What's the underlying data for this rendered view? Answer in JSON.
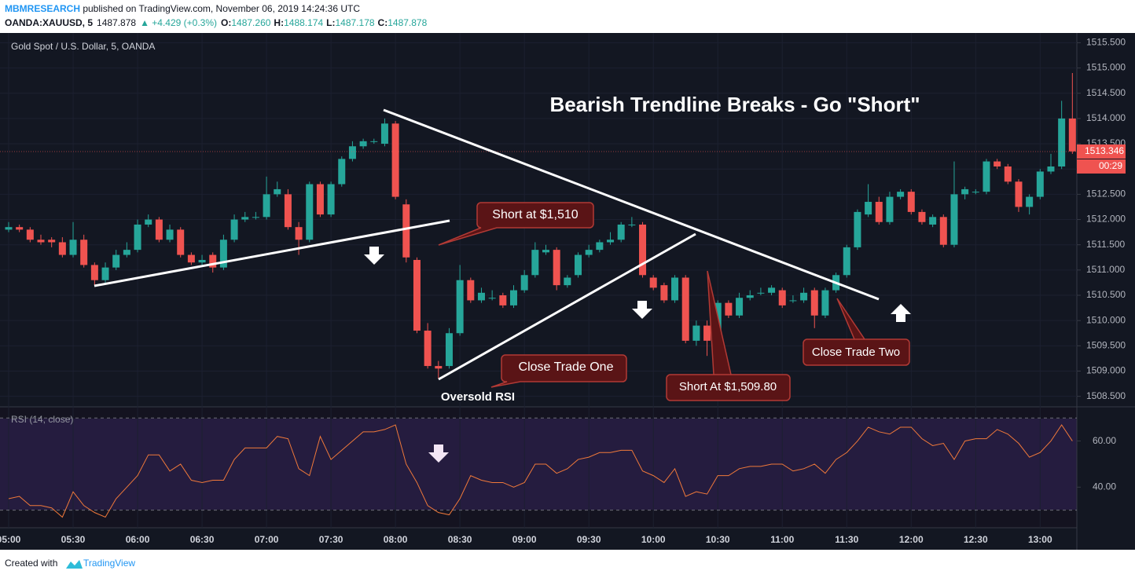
{
  "header": {
    "author": "MBMRESEARCH",
    "published": " published on TradingView.com, November 06, 2019 14:24:36 UTC",
    "symbol": "OANDA:XAUUSD, 5",
    "last": "1487.878",
    "change": "▲ +4.429 (+0.3%)",
    "ohlc": [
      {
        "label": "O:",
        "value": "1487.260"
      },
      {
        "label": "H:",
        "value": "1488.174"
      },
      {
        "label": "L:",
        "value": "1487.178"
      },
      {
        "label": "C:",
        "value": "1487.878"
      }
    ]
  },
  "footer": {
    "prefix": "Created with",
    "brand": "TradingView"
  },
  "chart_data": [
    {
      "type": "candlestick",
      "title": "Gold Spot / U.S. Dollar, 5, OANDA",
      "up_color": "#26a69a",
      "down_color": "#ef5350",
      "categories": [
        "05:00",
        null,
        null,
        null,
        null,
        null,
        "05:30",
        null,
        null,
        null,
        null,
        null,
        "06:00",
        null,
        null,
        null,
        null,
        null,
        "06:30",
        null,
        null,
        null,
        null,
        null,
        "07:00",
        null,
        null,
        null,
        null,
        null,
        "07:30",
        null,
        null,
        null,
        null,
        null,
        "08:00",
        null,
        null,
        null,
        null,
        null,
        "08:30",
        null,
        null,
        null,
        null,
        null,
        "09:00",
        null,
        null,
        null,
        null,
        null,
        "09:30",
        null,
        null,
        null,
        null,
        null,
        "10:00",
        null,
        null,
        null,
        null,
        null,
        "10:30",
        null,
        null,
        null,
        null,
        null,
        "11:00",
        null,
        null,
        null,
        null,
        null,
        "11:30",
        null,
        null,
        null,
        null,
        null,
        "12:00",
        null,
        null,
        null,
        null,
        null,
        "12:30",
        null,
        null,
        null,
        null,
        null,
        "13:00",
        null,
        null,
        null
      ],
      "open": [
        1511.8,
        1511.85,
        1511.8,
        1511.6,
        1511.6,
        1511.55,
        1511.3,
        1511.6,
        1511.1,
        1510.8,
        1511.05,
        1511.3,
        1511.4,
        1511.9,
        1512.0,
        1511.6,
        1511.8,
        1511.3,
        1511.15,
        1511.3,
        1511.05,
        1511.6,
        1512.0,
        1512.05,
        1512.05,
        1512.5,
        1512.5,
        1511.85,
        1511.6,
        1512.7,
        1512.1,
        1512.7,
        1513.2,
        1513.45,
        1513.55,
        1513.5,
        1513.9,
        1512.3,
        1511.2,
        1509.8,
        1509.1,
        1509.1,
        1509.75,
        1510.8,
        1510.4,
        1510.45,
        1510.5,
        1510.3,
        1510.6,
        1510.9,
        1511.35,
        1511.4,
        1510.7,
        1510.9,
        1511.3,
        1511.4,
        1511.55,
        1511.6,
        1511.9,
        1511.9,
        1510.85,
        1510.7,
        1510.4,
        1510.85,
        1509.6,
        1509.9,
        1509.6,
        1510.35,
        1510.1,
        1510.45,
        1510.55,
        1510.55,
        1510.6,
        1510.4,
        1510.4,
        1510.6,
        1510.1,
        1510.6,
        1510.9,
        1511.45,
        1512.1,
        1512.35,
        1511.95,
        1512.45,
        1512.55,
        1512.15,
        1511.9,
        1512.05,
        1511.5,
        1512.5,
        1512.55,
        1512.55,
        1513.15,
        1513.05,
        1512.75,
        1512.25,
        1512.45,
        1512.95,
        1513.05,
        1514.0
      ],
      "high": [
        1511.95,
        1511.9,
        1511.85,
        1511.7,
        1511.65,
        1511.65,
        1511.95,
        1511.7,
        1511.15,
        1511.15,
        1511.4,
        1511.55,
        1512.0,
        1512.1,
        1512.05,
        1511.9,
        1511.85,
        1511.35,
        1511.3,
        1511.35,
        1511.7,
        1512.1,
        1512.15,
        1512.15,
        1512.85,
        1512.75,
        1512.6,
        1511.95,
        1512.75,
        1512.75,
        1512.75,
        1513.25,
        1513.55,
        1513.6,
        1513.6,
        1514.0,
        1513.95,
        1512.4,
        1511.25,
        1509.95,
        1509.2,
        1509.85,
        1511.1,
        1510.85,
        1510.65,
        1510.6,
        1510.55,
        1510.7,
        1511.0,
        1511.55,
        1511.5,
        1511.45,
        1510.9,
        1511.35,
        1511.5,
        1511.6,
        1511.75,
        1511.95,
        1512.05,
        1511.95,
        1510.9,
        1510.75,
        1510.9,
        1510.9,
        1510.0,
        1510.0,
        1510.4,
        1510.4,
        1510.55,
        1510.6,
        1510.65,
        1510.7,
        1510.65,
        1510.5,
        1510.65,
        1510.65,
        1510.65,
        1510.95,
        1511.5,
        1512.2,
        1512.7,
        1512.45,
        1512.55,
        1512.6,
        1512.6,
        1512.2,
        1512.1,
        1512.1,
        1513.15,
        1512.65,
        1512.6,
        1513.2,
        1513.2,
        1513.1,
        1512.8,
        1512.5,
        1513.0,
        1513.3,
        1514.35,
        1514.9
      ],
      "low": [
        1511.75,
        1511.75,
        1511.55,
        1511.5,
        1511.45,
        1511.25,
        1511.25,
        1511.05,
        1510.7,
        1510.75,
        1511.0,
        1511.25,
        1511.35,
        1511.85,
        1511.55,
        1511.55,
        1511.25,
        1511.1,
        1511.1,
        1510.95,
        1511.0,
        1511.55,
        1511.95,
        1512.0,
        1512.0,
        1512.45,
        1511.8,
        1511.3,
        1511.55,
        1512.05,
        1512.05,
        1512.65,
        1513.15,
        1513.4,
        1513.5,
        1513.45,
        1512.4,
        1511.15,
        1509.75,
        1509.05,
        1508.85,
        1509.05,
        1509.7,
        1510.35,
        1510.35,
        1510.4,
        1510.25,
        1510.25,
        1510.55,
        1510.85,
        1511.3,
        1510.6,
        1510.65,
        1510.85,
        1511.25,
        1511.35,
        1511.5,
        1511.55,
        1511.85,
        1510.85,
        1510.6,
        1510.35,
        1510.35,
        1509.55,
        1509.5,
        1509.3,
        1509.55,
        1510.05,
        1510.05,
        1510.4,
        1510.5,
        1510.5,
        1510.25,
        1510.35,
        1510.35,
        1509.85,
        1510.05,
        1510.55,
        1510.85,
        1511.4,
        1512.05,
        1511.9,
        1511.9,
        1512.4,
        1512.1,
        1511.9,
        1511.85,
        1511.45,
        1511.45,
        1512.4,
        1512.5,
        1512.5,
        1513.0,
        1512.7,
        1512.15,
        1512.1,
        1512.4,
        1512.9,
        1513.0,
        1513.3
      ],
      "close": [
        1511.85,
        1511.8,
        1511.6,
        1511.55,
        1511.55,
        1511.3,
        1511.6,
        1511.1,
        1510.8,
        1511.05,
        1511.3,
        1511.4,
        1511.9,
        1512.0,
        1511.6,
        1511.8,
        1511.3,
        1511.15,
        1511.2,
        1511.05,
        1511.6,
        1512.0,
        1512.05,
        1512.05,
        1512.5,
        1512.6,
        1511.85,
        1511.6,
        1512.7,
        1512.1,
        1512.7,
        1513.2,
        1513.45,
        1513.55,
        1513.55,
        1513.9,
        1512.45,
        1511.25,
        1509.8,
        1509.1,
        1509.05,
        1509.75,
        1510.8,
        1510.4,
        1510.55,
        1510.45,
        1510.3,
        1510.6,
        1510.9,
        1511.4,
        1511.4,
        1510.7,
        1510.85,
        1511.3,
        1511.4,
        1511.55,
        1511.6,
        1511.9,
        1511.9,
        1510.9,
        1510.65,
        1510.4,
        1510.85,
        1509.6,
        1509.9,
        1509.6,
        1510.35,
        1510.1,
        1510.45,
        1510.5,
        1510.55,
        1510.65,
        1510.3,
        1510.4,
        1510.55,
        1510.1,
        1510.6,
        1510.9,
        1511.45,
        1512.15,
        1512.35,
        1511.95,
        1512.45,
        1512.55,
        1512.15,
        1511.95,
        1512.05,
        1511.5,
        1512.5,
        1512.6,
        1512.55,
        1513.15,
        1513.05,
        1512.75,
        1512.25,
        1512.45,
        1512.95,
        1513.05,
        1514.0,
        1513.35
      ],
      "ylim": [
        1508.308,
        1515.693
      ],
      "yticks": [
        {
          "value": 1508.5,
          "label": "1508.500"
        },
        {
          "value": 1509,
          "label": "1509.000"
        },
        {
          "value": 1509.5,
          "label": "1509.500"
        },
        {
          "value": 1510,
          "label": "1510.000"
        },
        {
          "value": 1510.5,
          "label": "1510.500"
        },
        {
          "value": 1511,
          "label": "1511.000"
        },
        {
          "value": 1511.5,
          "label": "1511.500"
        },
        {
          "value": 1512,
          "label": "1512.000"
        },
        {
          "value": 1512.5,
          "label": "1512.500"
        },
        {
          "value": 1513,
          "label": "1513.000"
        },
        {
          "value": 1513.5,
          "label": "1513.500"
        },
        {
          "value": 1514,
          "label": "1514.000"
        },
        {
          "value": 1514.5,
          "label": "1514.500"
        },
        {
          "value": 1515,
          "label": "1515.000"
        },
        {
          "value": 1515.5,
          "label": "1515.500"
        }
      ],
      "grid": true,
      "current_price": {
        "value": 1513.346,
        "label": "1513.346"
      },
      "countdown": "00:29",
      "annotations": [
        "Bearish Trendline Breaks - Go \"Short\"",
        "Short at $1,510",
        "Close Trade One",
        "Oversold RSI",
        "Short At $1,509.80",
        "Close Trade Two"
      ]
    },
    {
      "type": "line",
      "title": "RSI (14, close)",
      "color": "#f0793a",
      "values": [
        35,
        36,
        32,
        32,
        31,
        27,
        38,
        32,
        29,
        27,
        35,
        40,
        45,
        54,
        54,
        47,
        50,
        43,
        42,
        43,
        43,
        52,
        57,
        57,
        57,
        62,
        61,
        48,
        45,
        62,
        52,
        56,
        60,
        64,
        64,
        65,
        67,
        50,
        42,
        32,
        29,
        28,
        35,
        45,
        43,
        42,
        42,
        40,
        42,
        50,
        50,
        46,
        48,
        52,
        53,
        55,
        55,
        56,
        56,
        47,
        45,
        42,
        48,
        36,
        38,
        37,
        45,
        45,
        48,
        49,
        49,
        50,
        50,
        47,
        48,
        50,
        46,
        52,
        55,
        60,
        66,
        64,
        63,
        66,
        66,
        61,
        58,
        59,
        52,
        60,
        61,
        61,
        65,
        63,
        59,
        53,
        55,
        60,
        67,
        60
      ],
      "ylim": [
        22.4,
        74.5
      ],
      "yticks": [
        {
          "value": 40,
          "label": "40.00"
        },
        {
          "value": 60,
          "label": "60.00"
        }
      ],
      "bands": [
        30,
        70
      ]
    }
  ]
}
